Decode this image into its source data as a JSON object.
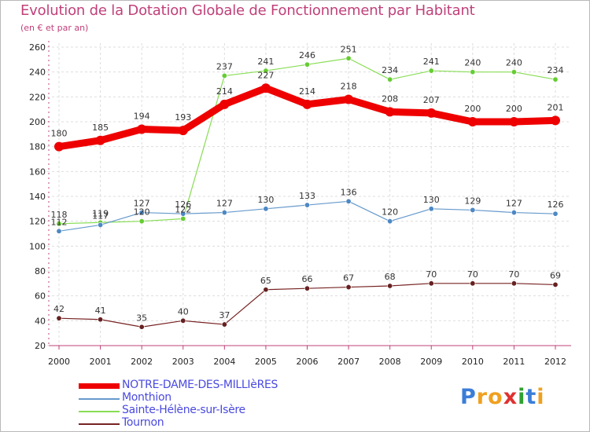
{
  "title": "Evolution de la Dotation Globale de Fonctionnement par Habitant",
  "subtitle": "(en € et par an)",
  "logo": {
    "text": [
      "P",
      "r",
      "o",
      "x",
      "i",
      "t",
      "i"
    ],
    "colors": [
      "#3b7dd8",
      "#f0a020",
      "#f0a020",
      "#e03030",
      "#30a030",
      "#3b7dd8",
      "#f0a020"
    ]
  },
  "chart_data": {
    "type": "line",
    "x": [
      "2000",
      "2001",
      "2002",
      "2003",
      "2004",
      "2005",
      "2006",
      "2007",
      "2008",
      "2009",
      "2010",
      "2011",
      "2012"
    ],
    "ylim": [
      20,
      260
    ],
    "yticks": [
      "20",
      "40",
      "60",
      "80",
      "100",
      "120",
      "140",
      "160",
      "180",
      "200",
      "220",
      "240",
      "260"
    ],
    "grid": true,
    "legend_position": "bottom-left",
    "series": [
      {
        "name": "NOTRE-DAME-DES-MILLIèRES",
        "color": "#ee0000",
        "values": [
          180,
          185,
          194,
          193,
          214,
          227,
          214,
          218,
          208,
          207,
          200,
          200,
          201
        ],
        "labels": [
          "180",
          "185",
          "194",
          "193",
          "214",
          "227",
          "214",
          "218",
          "208",
          "207",
          "200",
          "200",
          "201"
        ]
      },
      {
        "name": "Monthion",
        "color": "#6699cc",
        "values": [
          112,
          117,
          127,
          126,
          127,
          130,
          133,
          136,
          120,
          130,
          129,
          127,
          126
        ],
        "labels": [
          "112",
          "117",
          "127",
          "126",
          "127",
          "130",
          "133",
          "136",
          "120",
          "130",
          "129",
          "127",
          "126"
        ]
      },
      {
        "name": "Sainte-Hélène-sur-Isère",
        "color": "#88dd55",
        "values": [
          118,
          119,
          120,
          122,
          237,
          241,
          246,
          251,
          234,
          241,
          240,
          240,
          234
        ],
        "labels": [
          "118",
          "119",
          "120",
          "122",
          "237",
          "241",
          "246",
          "251",
          "234",
          "241",
          "240",
          "240",
          "234"
        ]
      },
      {
        "name": "Tournon",
        "color": "#772222",
        "values": [
          42,
          41,
          35,
          40,
          37,
          65,
          66,
          67,
          68,
          70,
          70,
          70,
          69
        ],
        "labels": [
          "42",
          "41",
          "35",
          "40",
          "37",
          "65",
          "66",
          "67",
          "68",
          "70",
          "70",
          "70",
          "69"
        ]
      }
    ]
  }
}
